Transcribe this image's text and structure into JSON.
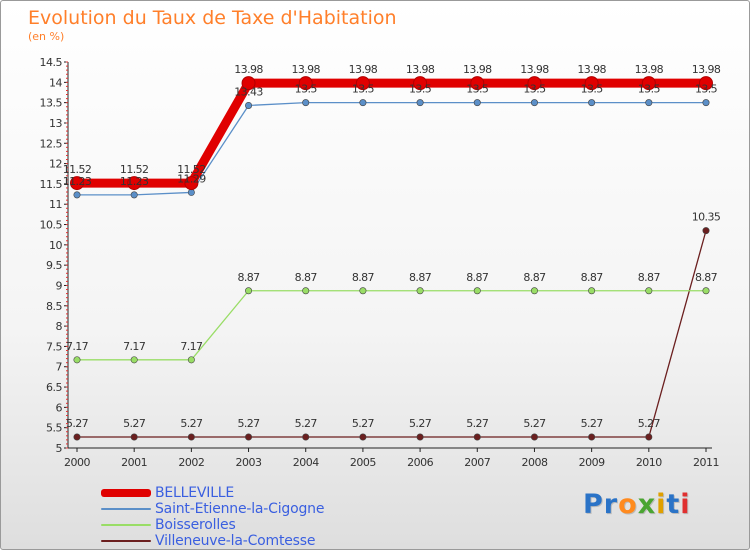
{
  "chart_data": {
    "type": "line",
    "title": "Evolution du Taux de Taxe d'Habitation",
    "subtitle": "(en %)",
    "xlabel": "",
    "ylabel": "",
    "categories": [
      "2000",
      "2001",
      "2002",
      "2003",
      "2004",
      "2005",
      "2006",
      "2007",
      "2008",
      "2009",
      "2010",
      "2011"
    ],
    "ylim": [
      5,
      14.5
    ],
    "yticks": [
      "5",
      "5.5",
      "6",
      "6.5",
      "7",
      "7.5",
      "8",
      "8.5",
      "9",
      "9.5",
      "10",
      "10.5",
      "11",
      "11.5",
      "12",
      "12.5",
      "13",
      "13.5",
      "14",
      "14.5"
    ],
    "series": [
      {
        "name": "BELLEVILLE",
        "color": "#e00000",
        "values": [
          11.52,
          11.52,
          11.52,
          13.98,
          13.98,
          13.98,
          13.98,
          13.98,
          13.98,
          13.98,
          13.98,
          13.98
        ],
        "labels": [
          "11.52",
          "11.52",
          "11.52",
          "13.98",
          "13.98",
          "13.98",
          "13.98",
          "13.98",
          "13.98",
          "13.98",
          "13.98",
          "13.98"
        ]
      },
      {
        "name": "Saint-Etienne-la-Cigogne",
        "color": "#5b8fc8",
        "values": [
          11.23,
          11.23,
          11.29,
          13.43,
          13.5,
          13.5,
          13.5,
          13.5,
          13.5,
          13.5,
          13.5,
          13.5
        ],
        "labels": [
          "11.23",
          "11.23",
          "11.29",
          "13.43",
          "13.5",
          "13.5",
          "13.5",
          "13.5",
          "13.5",
          "13.5",
          "13.5",
          "13.5"
        ]
      },
      {
        "name": "Boisserolles",
        "color": "#99dd66",
        "values": [
          7.17,
          7.17,
          7.17,
          8.87,
          8.87,
          8.87,
          8.87,
          8.87,
          8.87,
          8.87,
          8.87,
          8.87
        ],
        "labels": [
          "7.17",
          "7.17",
          "7.17",
          "8.87",
          "8.87",
          "8.87",
          "8.87",
          "8.87",
          "8.87",
          "8.87",
          "8.87",
          "8.87"
        ]
      },
      {
        "name": "Villeneuve-la-Comtesse",
        "color": "#6b1f1f",
        "values": [
          5.27,
          5.27,
          5.27,
          5.27,
          5.27,
          5.27,
          5.27,
          5.27,
          5.27,
          5.27,
          5.27,
          10.35
        ],
        "labels": [
          "5.27",
          "5.27",
          "5.27",
          "5.27",
          "5.27",
          "5.27",
          "5.27",
          "5.27",
          "5.27",
          "5.27",
          "5.27",
          "10.35"
        ]
      }
    ],
    "legend_position": "bottom-left",
    "grid": false
  },
  "branding": {
    "logo_text": "Proxiti"
  }
}
